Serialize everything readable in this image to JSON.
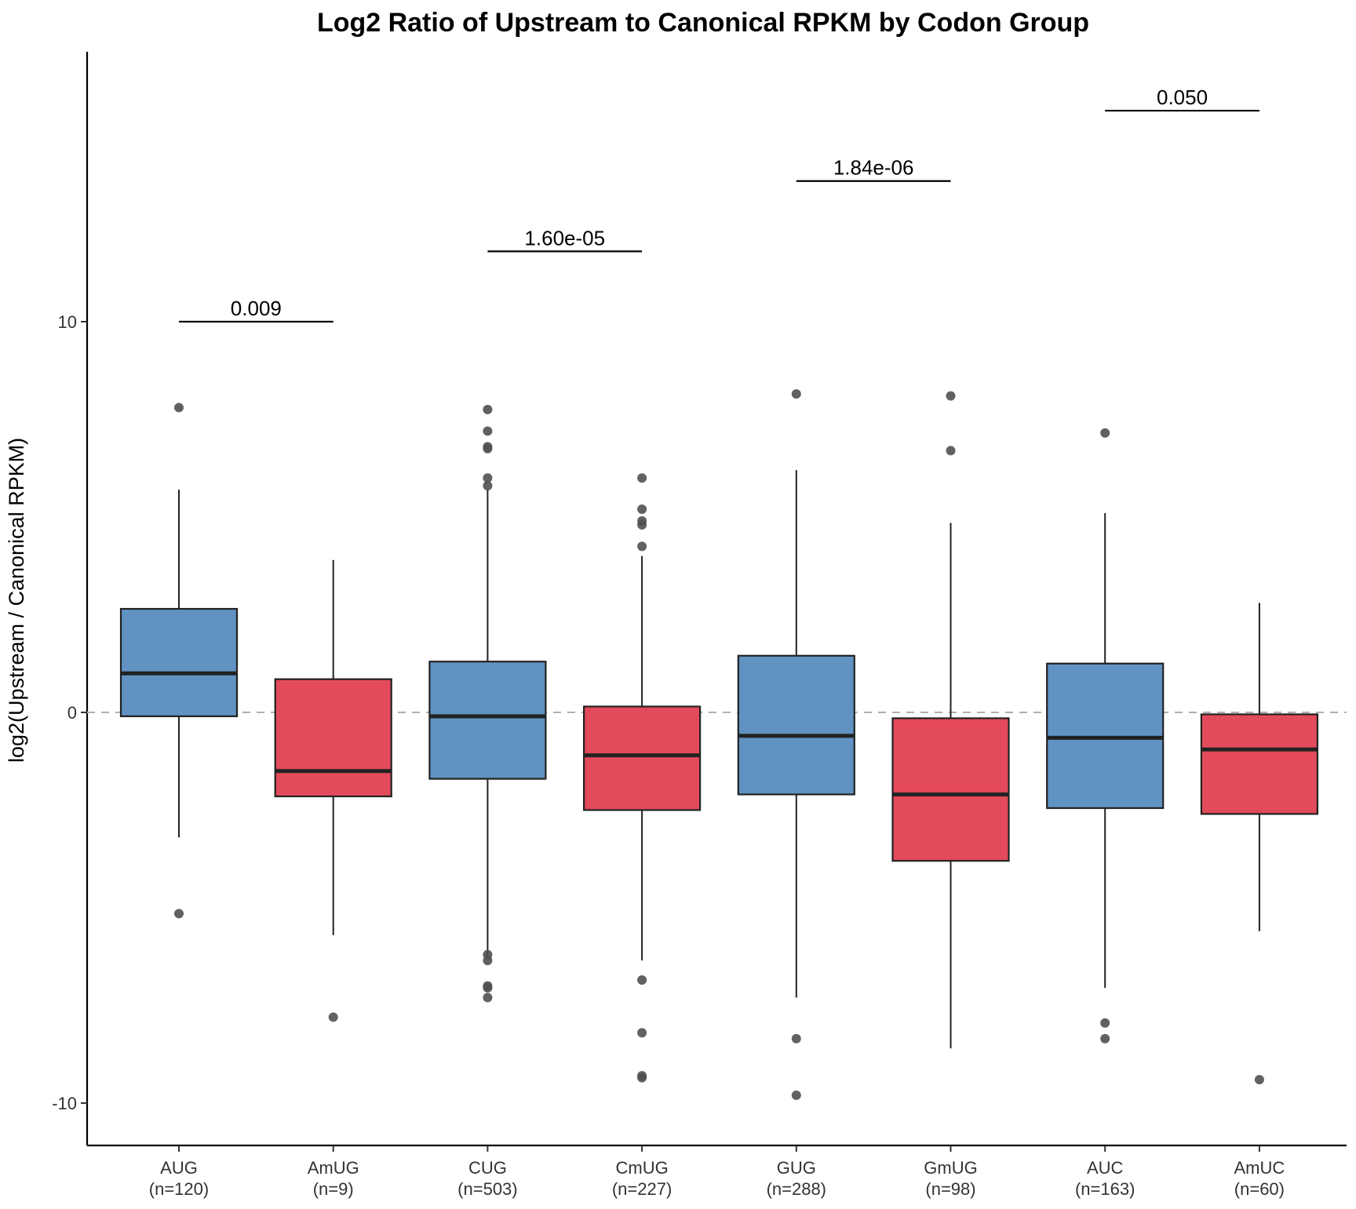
{
  "chart_data": {
    "type": "boxplot",
    "title": "Log2 Ratio of Upstream to Canonical RPKM by Codon Group",
    "ylabel": "log2(Upstream / Canonical RPKM)",
    "xlabel": "",
    "ylim": [
      -11.1,
      17.0
    ],
    "yticks": [
      {
        "value": -10,
        "label": "-10"
      },
      {
        "value": 0,
        "label": "0"
      },
      {
        "value": 10,
        "label": "10"
      }
    ],
    "reference_line": 0,
    "grid": false,
    "colors": {
      "canonical": "#6092c2",
      "modified": "#e34a5b",
      "outlier": "#505050",
      "reference": "#b0b0b0"
    },
    "groups": [
      {
        "name": "AUG",
        "n_label": "(n=120)",
        "kind": "canonical",
        "q1": -0.1,
        "median": 1.0,
        "q3": 2.65,
        "whisker_low": -3.2,
        "whisker_high": 5.7,
        "outliers": [
          7.8,
          -5.15
        ]
      },
      {
        "name": "AmUG",
        "n_label": "(n=9)",
        "kind": "modified",
        "q1": -2.15,
        "median": -1.5,
        "q3": 0.85,
        "whisker_low": -5.7,
        "whisker_high": 3.9,
        "outliers": [
          -7.8
        ]
      },
      {
        "name": "CUG",
        "n_label": "(n=503)",
        "kind": "canonical",
        "q1": -1.7,
        "median": -0.1,
        "q3": 1.3,
        "whisker_low": -6.25,
        "whisker_high": 5.7,
        "outliers": [
          7.75,
          7.2,
          6.8,
          6.75,
          6.0,
          5.8,
          -6.2,
          -6.35,
          -7.0,
          -7.05,
          -7.3
        ]
      },
      {
        "name": "CmUG",
        "n_label": "(n=227)",
        "kind": "modified",
        "q1": -2.5,
        "median": -1.1,
        "q3": 0.15,
        "whisker_low": -6.35,
        "whisker_high": 4.0,
        "outliers": [
          6.0,
          5.2,
          4.9,
          4.8,
          4.25,
          -6.85,
          -8.2,
          -9.3,
          -9.35
        ]
      },
      {
        "name": "GUG",
        "n_label": "(n=288)",
        "kind": "canonical",
        "q1": -2.1,
        "median": -0.6,
        "q3": 1.45,
        "whisker_low": -7.3,
        "whisker_high": 6.2,
        "outliers": [
          8.15,
          -8.35,
          -9.8
        ]
      },
      {
        "name": "GmUG",
        "n_label": "(n=98)",
        "kind": "modified",
        "q1": -3.8,
        "median": -2.1,
        "q3": -0.15,
        "whisker_low": -8.6,
        "whisker_high": 4.85,
        "outliers": [
          8.1,
          6.7
        ]
      },
      {
        "name": "AUC",
        "n_label": "(n=163)",
        "kind": "canonical",
        "q1": -2.45,
        "median": -0.65,
        "q3": 1.25,
        "whisker_low": -7.05,
        "whisker_high": 5.1,
        "outliers": [
          7.15,
          -7.95,
          -8.35
        ]
      },
      {
        "name": "AmUC",
        "n_label": "(n=60)",
        "kind": "modified",
        "q1": -2.6,
        "median": -0.95,
        "q3": -0.05,
        "whisker_low": -5.6,
        "whisker_high": 2.8,
        "outliers": [
          -9.4
        ]
      }
    ],
    "comparisons": [
      {
        "from": 0,
        "to": 1,
        "y": 10.0,
        "label": "0.009"
      },
      {
        "from": 2,
        "to": 3,
        "y": 11.8,
        "label": "1.60e-05"
      },
      {
        "from": 4,
        "to": 5,
        "y": 13.6,
        "label": "1.84e-06"
      },
      {
        "from": 6,
        "to": 7,
        "y": 15.4,
        "label": "0.050"
      }
    ]
  }
}
